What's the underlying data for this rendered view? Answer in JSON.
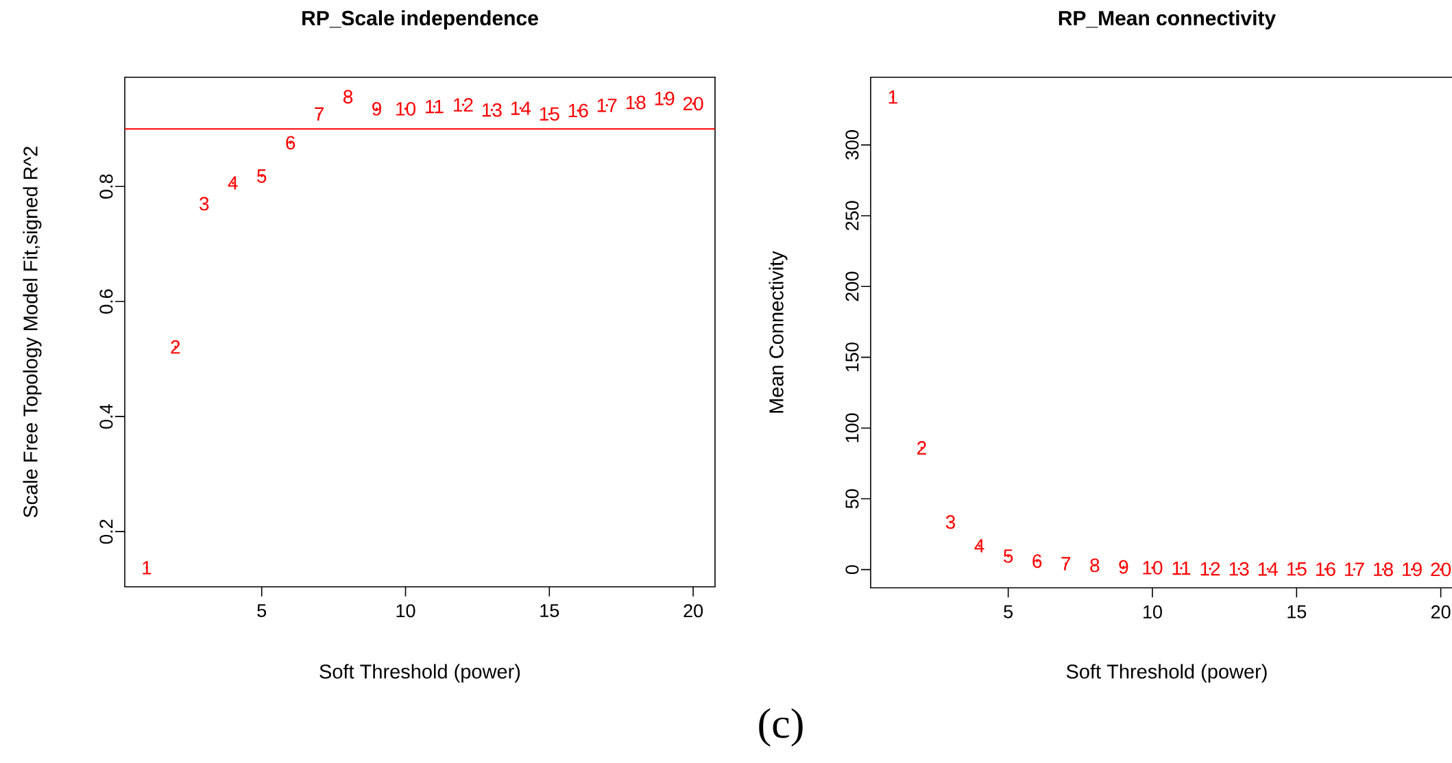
{
  "chart_data": [
    {
      "type": "scatter",
      "title": "RP_Scale independence",
      "xlabel": "Soft Threshold (power)",
      "ylabel": "Scale Free Topology Model Fit,signed R^2",
      "marker": "circle",
      "x": [
        1,
        2,
        3,
        4,
        5,
        6,
        7,
        8,
        9,
        10,
        11,
        12,
        13,
        14,
        15,
        16,
        17,
        18,
        19,
        20
      ],
      "values": [
        0.137,
        0.521,
        0.77,
        0.806,
        0.818,
        0.876,
        0.926,
        0.956,
        0.935,
        0.935,
        0.939,
        0.942,
        0.933,
        0.936,
        0.926,
        0.932,
        0.941,
        0.946,
        0.953,
        0.944
      ],
      "color": "#ff0000",
      "xlim": [
        0.24,
        20.76
      ],
      "ylim": [
        0.104,
        0.99
      ],
      "xticks": [
        5,
        10,
        15,
        20
      ],
      "yticks": [
        0.2,
        0.4,
        0.6,
        0.8
      ],
      "ref_lines": [
        {
          "axis": "y",
          "value": 0.9,
          "color": "#ff0000"
        }
      ],
      "annotations": [
        "(c)",
        {
          "text": "1",
          "x": 1,
          "y": 0.137
        },
        {
          "text": "2",
          "x": 2,
          "y": 0.521
        },
        {
          "text": "3",
          "x": 3,
          "y": 0.77
        },
        {
          "text": "4",
          "x": 4,
          "y": 0.806
        },
        {
          "text": "5",
          "x": 5,
          "y": 0.818
        },
        {
          "text": "6",
          "x": 6,
          "y": 0.876
        },
        {
          "text": "7",
          "x": 7,
          "y": 0.926
        },
        {
          "text": "8",
          "x": 8,
          "y": 0.956
        },
        {
          "text": "9",
          "x": 9,
          "y": 0.935
        },
        {
          "text": "10",
          "x": 10,
          "y": 0.935
        },
        {
          "text": "11",
          "x": 11,
          "y": 0.939
        },
        {
          "text": "12",
          "x": 12,
          "y": 0.942
        },
        {
          "text": "13",
          "x": 13,
          "y": 0.933
        },
        {
          "text": "14",
          "x": 14,
          "y": 0.936
        },
        {
          "text": "15",
          "x": 15,
          "y": 0.926
        },
        {
          "text": "16",
          "x": 16,
          "y": 0.932
        },
        {
          "text": "17",
          "x": 17,
          "y": 0.941
        },
        {
          "text": "18",
          "x": 18,
          "y": 0.946
        },
        {
          "text": "19",
          "x": 19,
          "y": 0.953
        },
        {
          "text": "20",
          "x": 20,
          "y": 0.944
        }
      ]
    },
    {
      "type": "scatter",
      "title": "RP_Mean connectivity",
      "xlabel": "Soft Threshold (power)",
      "ylabel": "Mean Connectivity",
      "marker": "circle",
      "x": [
        1,
        2,
        3,
        4,
        5,
        6,
        7,
        8,
        9,
        10,
        11,
        12,
        13,
        14,
        15,
        16,
        17,
        18,
        19,
        20
      ],
      "values": [
        333.8,
        86,
        33.6,
        16.8,
        9.5,
        6,
        4.2,
        3,
        1.9,
        1.3,
        1.0,
        0.6,
        0.5,
        0.4,
        0.4,
        0.3,
        0.2,
        0.2,
        0.2,
        0.1
      ],
      "color": "#ff0000",
      "xlim": [
        0.23,
        20.77
      ],
      "ylim": [
        -12.9,
        347.8
      ],
      "xticks": [
        5,
        10,
        15,
        20
      ],
      "yticks": [
        0,
        50,
        100,
        150,
        200,
        250,
        300
      ],
      "annotations": [
        {
          "text": "1",
          "x": 1,
          "y": 333.8
        },
        {
          "text": "2",
          "x": 2,
          "y": 86
        },
        {
          "text": "3",
          "x": 3,
          "y": 33.6
        },
        {
          "text": "4",
          "x": 4,
          "y": 16.8
        },
        {
          "text": "5",
          "x": 5,
          "y": 9.5
        },
        {
          "text": "6",
          "x": 6,
          "y": 6
        },
        {
          "text": "7",
          "x": 7,
          "y": 4.2
        },
        {
          "text": "8",
          "x": 8,
          "y": 3
        },
        {
          "text": "9",
          "x": 9,
          "y": 1.9
        },
        {
          "text": "10",
          "x": 10,
          "y": 1.3
        },
        {
          "text": "11",
          "x": 11,
          "y": 1.0
        },
        {
          "text": "12",
          "x": 12,
          "y": 0.6
        },
        {
          "text": "13",
          "x": 13,
          "y": 0.5
        },
        {
          "text": "14",
          "x": 14,
          "y": 0.4
        },
        {
          "text": "15",
          "x": 15,
          "y": 0.4
        },
        {
          "text": "16",
          "x": 16,
          "y": 0.3
        },
        {
          "text": "17",
          "x": 17,
          "y": 0.2
        },
        {
          "text": "18",
          "x": 18,
          "y": 0.2
        },
        {
          "text": "19",
          "x": 19,
          "y": 0.2
        },
        {
          "text": "20",
          "x": 20,
          "y": 0.1
        }
      ]
    }
  ]
}
